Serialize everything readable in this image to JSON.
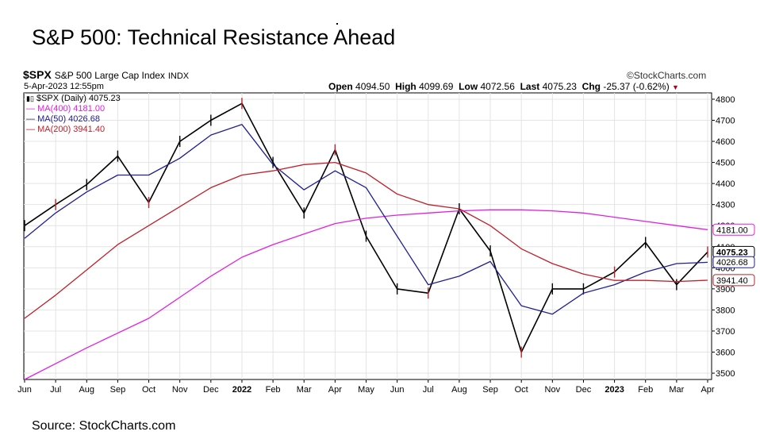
{
  "slide": {
    "title": "S&P 500: Technical Resistance Ahead",
    "source": "Source: StockCharts.com"
  },
  "chart_header": {
    "symbol": "$SPX",
    "name": "S&P 500 Large Cap Index",
    "exchange": "INDX",
    "brand": "©StockCharts.com",
    "datetime": "5-Apr-2023 12:55pm",
    "open_label": "Open",
    "open": "4094.50",
    "high_label": "High",
    "high": "4099.69",
    "low_label": "Low",
    "low": "4072.56",
    "last_label": "Last",
    "last": "4075.23",
    "chg_label": "Chg",
    "chg": "-25.37 (-0.62%)"
  },
  "legend": [
    {
      "text": "$SPX (Daily) 4075.23",
      "color": "#000000"
    },
    {
      "text": "MA(400) 4181.00",
      "color": "#e020e0"
    },
    {
      "text": "MA(50) 4026.68",
      "color": "#202090"
    },
    {
      "text": "MA(200) 3941.40",
      "color": "#c0202a"
    }
  ],
  "chart_data": {
    "type": "line",
    "x": [
      "Jun",
      "Jul",
      "Aug",
      "Sep",
      "Oct",
      "Nov",
      "Dec",
      "2022",
      "Feb",
      "Mar",
      "Apr",
      "May",
      "Jun",
      "Jul",
      "Aug",
      "Sep",
      "Oct",
      "Nov",
      "Dec",
      "2023",
      "Feb",
      "Mar",
      "Apr"
    ],
    "ylim": [
      3470,
      4830
    ],
    "y_ticks": [
      3500,
      3600,
      3700,
      3800,
      3900,
      4000,
      4100,
      4200,
      4300,
      4400,
      4500,
      4600,
      4700,
      4800
    ],
    "price_labels": [
      {
        "value": 4181.0,
        "text": "4181.00",
        "color": "#e020e0"
      },
      {
        "value": 4075.23,
        "text": "4075.23",
        "color": "#000000"
      },
      {
        "value": 4026.68,
        "text": "4026.68",
        "color": "#202090"
      },
      {
        "value": 3941.4,
        "text": "3941.40",
        "color": "#c0202a"
      }
    ],
    "series": [
      {
        "name": "$SPX (Daily)",
        "color": "#000000",
        "values": [
          4200,
          4300,
          4395,
          4530,
          4310,
          4600,
          4700,
          4780,
          4500,
          4260,
          4560,
          4150,
          3900,
          3880,
          4280,
          4080,
          3600,
          3900,
          3900,
          3980,
          4120,
          3920,
          4075
        ]
      },
      {
        "name": "MA(400)",
        "color": "#e020e0",
        "values": [
          3470,
          3545,
          3620,
          3690,
          3760,
          3860,
          3960,
          4050,
          4110,
          4160,
          4210,
          4235,
          4250,
          4260,
          4270,
          4275,
          4275,
          4270,
          4260,
          4240,
          4220,
          4200,
          4181
        ]
      },
      {
        "name": "MA(50)",
        "color": "#202090",
        "values": [
          4140,
          4260,
          4360,
          4440,
          4440,
          4520,
          4630,
          4680,
          4490,
          4370,
          4460,
          4380,
          4150,
          3920,
          3960,
          4030,
          3820,
          3780,
          3880,
          3920,
          3980,
          4020,
          4026
        ]
      },
      {
        "name": "MA(200)",
        "color": "#c0202a",
        "values": [
          3760,
          3870,
          3990,
          4110,
          4200,
          4290,
          4380,
          4440,
          4460,
          4490,
          4500,
          4450,
          4350,
          4300,
          4280,
          4200,
          4090,
          4020,
          3970,
          3940,
          3940,
          3935,
          3941
        ]
      }
    ],
    "grid": true,
    "legend_position": "top-left"
  }
}
